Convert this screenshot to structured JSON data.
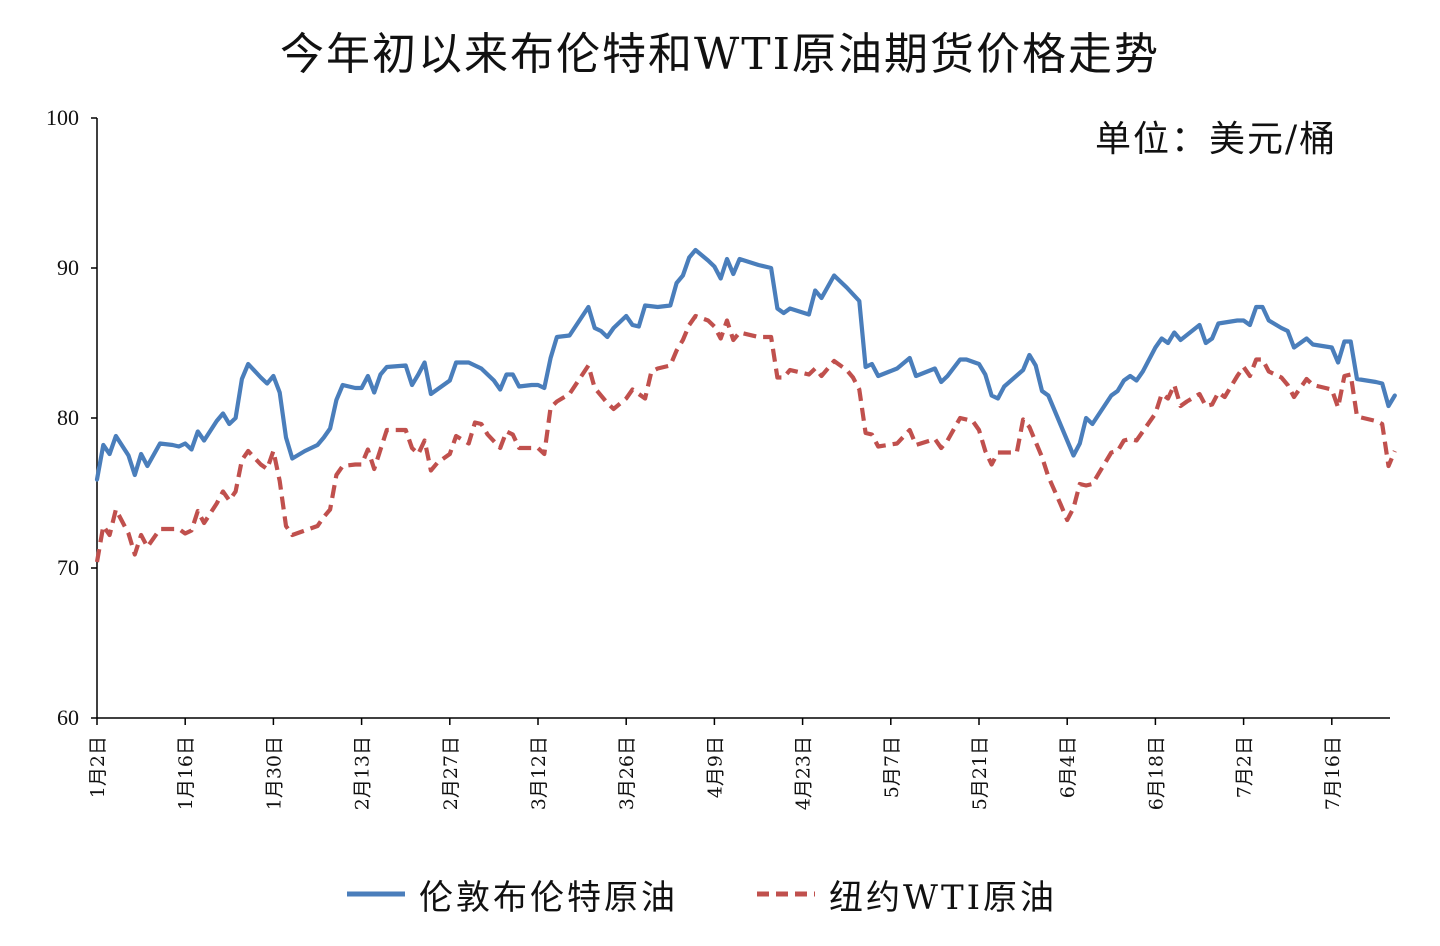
{
  "title": "今年初以来布伦特和WTI原油期货价格走势",
  "unit_label": "单位：美元/桶",
  "chart_data": {
    "type": "line",
    "title": "今年初以来布伦特和WTI原油期货价格走势",
    "xlabel": "",
    "ylabel": "",
    "ylim": [
      60,
      100
    ],
    "yticks": [
      "60",
      "70",
      "80",
      "90",
      "100"
    ],
    "xticks": [
      "1月2日",
      "1月16日",
      "1月30日",
      "2月13日",
      "2月27日",
      "3月12日",
      "3月26日",
      "4月9日",
      "4月23日",
      "5月7日",
      "5月21日",
      "6月4日",
      "6月18日",
      "7月2日",
      "7月16日"
    ],
    "grid": false,
    "legend_position": "bottom",
    "series": [
      {
        "name": "伦敦布伦特原油",
        "color": "#4a7ebb",
        "style": "solid",
        "points": [
          [
            0,
            75.9
          ],
          [
            1,
            78.2
          ],
          [
            2,
            77.6
          ],
          [
            3,
            78.8
          ],
          [
            5,
            77.5
          ],
          [
            6,
            76.2
          ],
          [
            7,
            77.6
          ],
          [
            8,
            76.8
          ],
          [
            10,
            78.3
          ],
          [
            12,
            78.2
          ],
          [
            13,
            78.1
          ],
          [
            14,
            78.3
          ],
          [
            15,
            77.9
          ],
          [
            16,
            79.1
          ],
          [
            17,
            78.5
          ],
          [
            19,
            79.8
          ],
          [
            20,
            80.3
          ],
          [
            21,
            79.6
          ],
          [
            22,
            80.0
          ],
          [
            23,
            82.6
          ],
          [
            24,
            83.6
          ],
          [
            26,
            82.7
          ],
          [
            27,
            82.3
          ],
          [
            28,
            82.8
          ],
          [
            29,
            81.7
          ],
          [
            30,
            78.7
          ],
          [
            31,
            77.3
          ],
          [
            33,
            77.8
          ],
          [
            35,
            78.2
          ],
          [
            36,
            78.7
          ],
          [
            37,
            79.3
          ],
          [
            38,
            81.2
          ],
          [
            39,
            82.2
          ],
          [
            41,
            82.0
          ],
          [
            42,
            82.0
          ],
          [
            43,
            82.8
          ],
          [
            44,
            81.7
          ],
          [
            45,
            82.9
          ],
          [
            46,
            83.4
          ],
          [
            49,
            83.5
          ],
          [
            50,
            82.2
          ],
          [
            51,
            82.9
          ],
          [
            52,
            83.7
          ],
          [
            53,
            81.6
          ],
          [
            54,
            81.9
          ],
          [
            56,
            82.5
          ],
          [
            57,
            83.7
          ],
          [
            59,
            83.7
          ],
          [
            61,
            83.3
          ],
          [
            63,
            82.5
          ],
          [
            64,
            81.9
          ],
          [
            65,
            82.9
          ],
          [
            66,
            82.9
          ],
          [
            67,
            82.1
          ],
          [
            69,
            82.2
          ],
          [
            70,
            82.2
          ],
          [
            71,
            82.0
          ],
          [
            72,
            84.0
          ],
          [
            73,
            85.4
          ],
          [
            75,
            85.5
          ],
          [
            78,
            87.4
          ],
          [
            79,
            86.0
          ],
          [
            80,
            85.8
          ],
          [
            81,
            85.4
          ],
          [
            82,
            86.0
          ],
          [
            84,
            86.8
          ],
          [
            85,
            86.2
          ],
          [
            86,
            86.1
          ],
          [
            87,
            87.5
          ],
          [
            89,
            87.4
          ],
          [
            91,
            87.5
          ],
          [
            92,
            89.0
          ],
          [
            93,
            89.5
          ],
          [
            94,
            90.7
          ],
          [
            95,
            91.2
          ],
          [
            97,
            90.5
          ],
          [
            98,
            90.1
          ],
          [
            99,
            89.3
          ],
          [
            100,
            90.6
          ],
          [
            101,
            89.6
          ],
          [
            102,
            90.6
          ],
          [
            105,
            90.2
          ],
          [
            107,
            90.0
          ],
          [
            108,
            87.3
          ],
          [
            109,
            87.0
          ],
          [
            110,
            87.3
          ],
          [
            113,
            86.9
          ],
          [
            114,
            88.5
          ],
          [
            115,
            88.0
          ],
          [
            117,
            89.5
          ],
          [
            119,
            88.7
          ],
          [
            121,
            87.8
          ],
          [
            122,
            83.4
          ],
          [
            123,
            83.6
          ],
          [
            124,
            82.8
          ],
          [
            127,
            83.3
          ],
          [
            129,
            84.0
          ],
          [
            130,
            82.8
          ],
          [
            133,
            83.3
          ],
          [
            134,
            82.4
          ],
          [
            135,
            82.8
          ],
          [
            137,
            83.9
          ],
          [
            138,
            83.9
          ],
          [
            140,
            83.6
          ],
          [
            141,
            82.9
          ],
          [
            142,
            81.5
          ],
          [
            143,
            81.3
          ],
          [
            144,
            82.1
          ],
          [
            147,
            83.2
          ],
          [
            148,
            84.2
          ],
          [
            149,
            83.5
          ],
          [
            150,
            81.8
          ],
          [
            151,
            81.5
          ],
          [
            153,
            79.5
          ],
          [
            155,
            77.5
          ],
          [
            156,
            78.3
          ],
          [
            157,
            80.0
          ],
          [
            158,
            79.6
          ],
          [
            161,
            81.5
          ],
          [
            162,
            81.8
          ],
          [
            163,
            82.5
          ],
          [
            164,
            82.8
          ],
          [
            165,
            82.5
          ],
          [
            166,
            83.1
          ],
          [
            168,
            84.7
          ],
          [
            169,
            85.3
          ],
          [
            170,
            85.0
          ],
          [
            171,
            85.7
          ],
          [
            172,
            85.2
          ],
          [
            175,
            86.2
          ],
          [
            176,
            85.0
          ],
          [
            177,
            85.3
          ],
          [
            178,
            86.3
          ],
          [
            181,
            86.5
          ],
          [
            182,
            86.5
          ],
          [
            183,
            86.2
          ],
          [
            184,
            87.4
          ],
          [
            185,
            87.4
          ],
          [
            186,
            86.5
          ],
          [
            188,
            86.0
          ],
          [
            189,
            85.8
          ],
          [
            190,
            84.7
          ],
          [
            191,
            85.0
          ],
          [
            192,
            85.3
          ],
          [
            193,
            84.9
          ],
          [
            196,
            84.7
          ],
          [
            197,
            83.7
          ],
          [
            198,
            85.1
          ],
          [
            199,
            85.1
          ],
          [
            200,
            82.6
          ],
          [
            203,
            82.4
          ],
          [
            204,
            82.3
          ],
          [
            205,
            80.8
          ],
          [
            206,
            81.5
          ]
        ]
      },
      {
        "name": "纽约WTI原油",
        "color": "#c0504d",
        "style": "dashed",
        "points": [
          [
            0,
            70.4
          ],
          [
            1,
            72.8
          ],
          [
            2,
            72.2
          ],
          [
            3,
            73.9
          ],
          [
            5,
            72.3
          ],
          [
            6,
            70.9
          ],
          [
            7,
            72.2
          ],
          [
            8,
            71.4
          ],
          [
            10,
            72.6
          ],
          [
            12,
            72.6
          ],
          [
            13,
            72.6
          ],
          [
            14,
            72.3
          ],
          [
            15,
            72.5
          ],
          [
            16,
            73.8
          ],
          [
            17,
            73.0
          ],
          [
            19,
            74.3
          ],
          [
            20,
            75.1
          ],
          [
            21,
            74.5
          ],
          [
            22,
            75.1
          ],
          [
            23,
            77.2
          ],
          [
            24,
            77.8
          ],
          [
            26,
            76.9
          ],
          [
            27,
            76.6
          ],
          [
            28,
            77.8
          ],
          [
            29,
            75.8
          ],
          [
            30,
            72.8
          ],
          [
            31,
            72.2
          ],
          [
            33,
            72.5
          ],
          [
            35,
            72.8
          ],
          [
            36,
            73.4
          ],
          [
            37,
            73.9
          ],
          [
            38,
            76.2
          ],
          [
            39,
            76.8
          ],
          [
            41,
            76.9
          ],
          [
            42,
            76.9
          ],
          [
            43,
            77.9
          ],
          [
            44,
            76.6
          ],
          [
            45,
            77.9
          ],
          [
            46,
            79.2
          ],
          [
            49,
            79.2
          ],
          [
            50,
            78.0
          ],
          [
            51,
            77.6
          ],
          [
            52,
            78.5
          ],
          [
            53,
            76.5
          ],
          [
            54,
            77.0
          ],
          [
            56,
            77.6
          ],
          [
            57,
            78.8
          ],
          [
            59,
            78.3
          ],
          [
            60,
            79.7
          ],
          [
            61,
            79.6
          ],
          [
            62,
            78.9
          ],
          [
            64,
            78.0
          ],
          [
            65,
            79.1
          ],
          [
            66,
            78.9
          ],
          [
            67,
            78.0
          ],
          [
            69,
            78.0
          ],
          [
            70,
            78.0
          ],
          [
            71,
            77.6
          ],
          [
            72,
            80.7
          ],
          [
            73,
            81.1
          ],
          [
            75,
            81.6
          ],
          [
            78,
            83.5
          ],
          [
            79,
            82.0
          ],
          [
            81,
            81.0
          ],
          [
            82,
            80.6
          ],
          [
            84,
            81.3
          ],
          [
            85,
            81.9
          ],
          [
            87,
            81.3
          ],
          [
            88,
            83.1
          ],
          [
            89,
            83.3
          ],
          [
            91,
            83.5
          ],
          [
            92,
            84.5
          ],
          [
            93,
            85.2
          ],
          [
            94,
            86.2
          ],
          [
            95,
            86.8
          ],
          [
            97,
            86.5
          ],
          [
            98,
            86.1
          ],
          [
            99,
            85.3
          ],
          [
            100,
            86.5
          ],
          [
            101,
            85.2
          ],
          [
            102,
            85.7
          ],
          [
            105,
            85.4
          ],
          [
            107,
            85.4
          ],
          [
            108,
            82.7
          ],
          [
            109,
            82.7
          ],
          [
            110,
            83.2
          ],
          [
            113,
            82.9
          ],
          [
            114,
            83.3
          ],
          [
            115,
            82.8
          ],
          [
            117,
            83.8
          ],
          [
            119,
            83.2
          ],
          [
            120,
            82.7
          ],
          [
            121,
            81.9
          ],
          [
            122,
            79.0
          ],
          [
            123,
            78.9
          ],
          [
            124,
            78.1
          ],
          [
            127,
            78.3
          ],
          [
            129,
            79.2
          ],
          [
            130,
            78.2
          ],
          [
            133,
            78.6
          ],
          [
            134,
            78.0
          ],
          [
            135,
            78.5
          ],
          [
            137,
            80.0
          ],
          [
            139,
            79.8
          ],
          [
            140,
            79.2
          ],
          [
            141,
            77.8
          ],
          [
            142,
            76.9
          ],
          [
            143,
            77.7
          ],
          [
            146,
            77.7
          ],
          [
            147,
            79.9
          ],
          [
            148,
            79.4
          ],
          [
            150,
            77.4
          ],
          [
            151,
            76.1
          ],
          [
            153,
            74.2
          ],
          [
            154,
            73.2
          ],
          [
            155,
            74.0
          ],
          [
            156,
            75.6
          ],
          [
            157,
            75.5
          ],
          [
            158,
            75.6
          ],
          [
            160,
            77.0
          ],
          [
            161,
            77.7
          ],
          [
            162,
            77.8
          ],
          [
            163,
            78.5
          ],
          [
            164,
            78.6
          ],
          [
            165,
            78.5
          ],
          [
            166,
            79.1
          ],
          [
            168,
            80.3
          ],
          [
            169,
            81.6
          ],
          [
            170,
            81.3
          ],
          [
            171,
            82.2
          ],
          [
            172,
            80.8
          ],
          [
            173,
            81.1
          ],
          [
            175,
            81.6
          ],
          [
            176,
            80.8
          ],
          [
            177,
            80.9
          ],
          [
            178,
            81.7
          ],
          [
            179,
            81.4
          ],
          [
            181,
            82.8
          ],
          [
            182,
            83.4
          ],
          [
            183,
            82.8
          ],
          [
            184,
            83.9
          ],
          [
            185,
            83.9
          ],
          [
            186,
            83.1
          ],
          [
            188,
            82.7
          ],
          [
            189,
            82.2
          ],
          [
            190,
            81.4
          ],
          [
            191,
            82.0
          ],
          [
            192,
            82.6
          ],
          [
            193,
            82.2
          ],
          [
            195,
            82.0
          ],
          [
            196,
            81.9
          ],
          [
            197,
            80.7
          ],
          [
            198,
            82.8
          ],
          [
            199,
            82.9
          ],
          [
            200,
            80.1
          ],
          [
            203,
            79.8
          ],
          [
            204,
            79.6
          ],
          [
            205,
            76.8
          ],
          [
            206,
            77.8
          ]
        ]
      }
    ]
  }
}
